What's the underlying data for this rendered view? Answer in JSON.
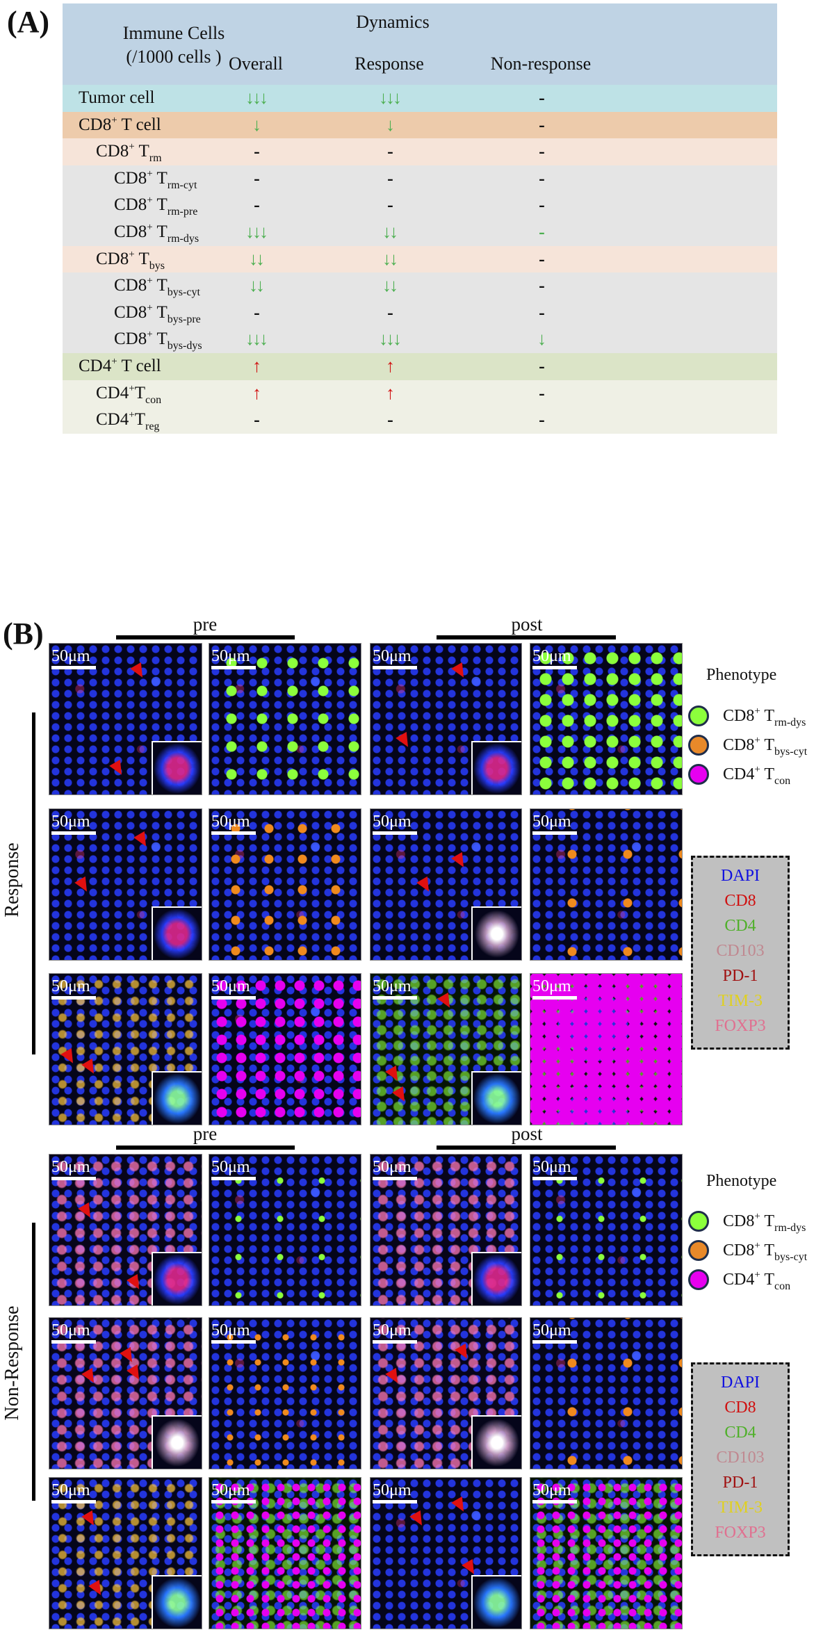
{
  "panel_a": {
    "label": "(A)",
    "header": {
      "col0_line1": "Immune Cells",
      "col0_line2": "(/1000 cells )",
      "group": "Dynamics",
      "columns": [
        "Overall",
        "Response",
        "Non-response"
      ]
    },
    "rows": [
      {
        "base": "Tumor cell",
        "sup": "",
        "rest": "",
        "sub": "",
        "level": 0,
        "bg": "#bee2e6",
        "overall": "↓↓↓",
        "response": "↓↓↓",
        "nonresponse": "-",
        "overall_dir": "down",
        "response_dir": "down",
        "nonresponse_dir": "none"
      },
      {
        "base": "CD8",
        "sup": "+",
        "rest": " T cell",
        "sub": "",
        "level": 0,
        "bg": "#edcbab",
        "overall": "↓",
        "response": "↓",
        "nonresponse": "-",
        "overall_dir": "down",
        "response_dir": "down",
        "nonresponse_dir": "none"
      },
      {
        "base": "CD8",
        "sup": "+",
        "rest": " T",
        "sub": "rm",
        "level": 1,
        "bg": "#f6e4d9",
        "overall": "-",
        "response": "-",
        "nonresponse": "-",
        "overall_dir": "none",
        "response_dir": "none",
        "nonresponse_dir": "none"
      },
      {
        "base": "CD8",
        "sup": "+",
        "rest": " T",
        "sub": "rm-cyt",
        "level": 2,
        "bg": "#e5e5e5",
        "overall": "-",
        "response": "-",
        "nonresponse": "-",
        "overall_dir": "none",
        "response_dir": "none",
        "nonresponse_dir": "none"
      },
      {
        "base": "CD8",
        "sup": "+",
        "rest": " T",
        "sub": "rm-pre",
        "level": 2,
        "bg": "#e5e5e5",
        "overall": "-",
        "response": "-",
        "nonresponse": "-",
        "overall_dir": "none",
        "response_dir": "none",
        "nonresponse_dir": "none"
      },
      {
        "base": "CD8",
        "sup": "+",
        "rest": " T",
        "sub": "rm-dys",
        "level": 2,
        "bg": "#e5e5e5",
        "overall": "↓↓↓",
        "response": "↓↓",
        "nonresponse": "-",
        "overall_dir": "down",
        "response_dir": "down",
        "nonresponse_dir": "none-green"
      },
      {
        "base": "CD8",
        "sup": "+",
        "rest": " T",
        "sub": "bys",
        "level": 1,
        "bg": "#f6e4d9",
        "overall": "↓↓",
        "response": "↓↓",
        "nonresponse": "-",
        "overall_dir": "down",
        "response_dir": "down",
        "nonresponse_dir": "none"
      },
      {
        "base": "CD8",
        "sup": "+",
        "rest": " T",
        "sub": "bys-cyt",
        "level": 2,
        "bg": "#e5e5e5",
        "overall": "↓↓",
        "response": "↓↓",
        "nonresponse": "-",
        "overall_dir": "down",
        "response_dir": "down",
        "nonresponse_dir": "none"
      },
      {
        "base": "CD8",
        "sup": "+",
        "rest": " T",
        "sub": "bys-pre",
        "level": 2,
        "bg": "#e5e5e5",
        "overall": "-",
        "response": "-",
        "nonresponse": "-",
        "overall_dir": "none",
        "response_dir": "none",
        "nonresponse_dir": "none"
      },
      {
        "base": "CD8",
        "sup": "+",
        "rest": " T",
        "sub": "bys-dys",
        "level": 2,
        "bg": "#e5e5e5",
        "overall": "↓↓↓",
        "response": "↓↓↓",
        "nonresponse": "↓",
        "overall_dir": "down",
        "response_dir": "down",
        "nonresponse_dir": "down"
      },
      {
        "base": "CD4",
        "sup": "+",
        "rest": " T cell",
        "sub": "",
        "level": 0,
        "bg": "#dbe4c7",
        "overall": "↑",
        "response": "↑",
        "nonresponse": "-",
        "overall_dir": "up",
        "response_dir": "up",
        "nonresponse_dir": "none"
      },
      {
        "base": "CD4",
        "sup": "+",
        "rest": "T",
        "sub": "con",
        "level": 1,
        "bg": "#eff0e5",
        "overall": "↑",
        "response": "↑",
        "nonresponse": "-",
        "overall_dir": "up",
        "response_dir": "up",
        "nonresponse_dir": "none"
      },
      {
        "base": "CD4",
        "sup": "+",
        "rest": "T",
        "sub": "reg",
        "level": 1,
        "bg": "#eff0e5",
        "overall": "-",
        "response": "-",
        "nonresponse": "-",
        "overall_dir": "none",
        "response_dir": "none",
        "nonresponse_dir": "none"
      }
    ],
    "colors": {
      "down_arrow": "#4caf50",
      "up_arrow": "#d01010",
      "header_bg": "#bfd3e4"
    }
  },
  "panel_b": {
    "label": "(B)",
    "scale_bar": "50μm",
    "time_labels": {
      "pre": "pre",
      "post": "post"
    },
    "groups": [
      {
        "name": "Response"
      },
      {
        "name": "Non-Response"
      }
    ],
    "phenotype_legend": {
      "title": "Phenotype",
      "items": [
        {
          "base": "CD8",
          "sup": "+",
          "rest": " T",
          "sub": "rm-dys",
          "color": "#8cff3c"
        },
        {
          "base": "CD8",
          "sup": "+",
          "rest": " T",
          "sub": "bys-cyt",
          "color": "#e8892a"
        },
        {
          "base": "CD4",
          "sup": "+",
          "rest": " T",
          "sub": "con",
          "color": "#e600f0"
        }
      ]
    },
    "marker_legend": {
      "items": [
        {
          "label": "DAPI",
          "color": "#1010e0"
        },
        {
          "label": "CD8",
          "color": "#d01010"
        },
        {
          "label": "CD4",
          "color": "#4fb02a"
        },
        {
          "label": "CD103",
          "color": "#c08890"
        },
        {
          "label": "PD-1",
          "color": "#a01010"
        },
        {
          "label": "TIM-3",
          "color": "#e0d020"
        },
        {
          "label": "FOXP3",
          "color": "#e07090"
        }
      ]
    }
  }
}
